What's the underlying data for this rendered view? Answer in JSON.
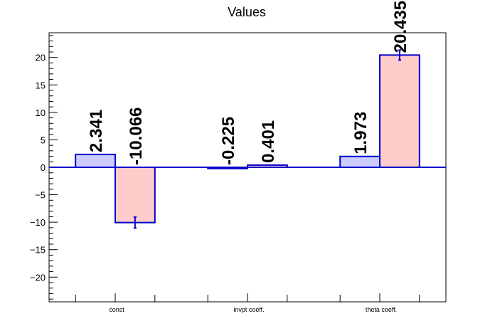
{
  "chart_data": {
    "type": "bar",
    "title": "Values",
    "xlabel": "",
    "ylabel": "",
    "categories": [
      "const",
      "invpt coeff.",
      "theta coeff."
    ],
    "ylim": [
      -24.5,
      24.5
    ],
    "yticks": [
      -20,
      -15,
      -10,
      -5,
      0,
      5,
      10,
      15,
      20
    ],
    "grid": false,
    "legend": "none",
    "series": [
      {
        "values": [
          2.341,
          -0.225,
          1.973
        ],
        "labels": [
          "2.341",
          "-0.225",
          "1.973"
        ],
        "errors": [
          0,
          0,
          0
        ],
        "fill": "#ccccff",
        "stroke": "#0000cc"
      },
      {
        "values": [
          -10.066,
          0.401,
          20.435
        ],
        "labels": [
          "-10.066",
          "0.401",
          "20.435"
        ],
        "errors": [
          1.0,
          0.0,
          0.9
        ],
        "fill": "#ffcccc",
        "stroke": "#0000cc"
      }
    ]
  }
}
